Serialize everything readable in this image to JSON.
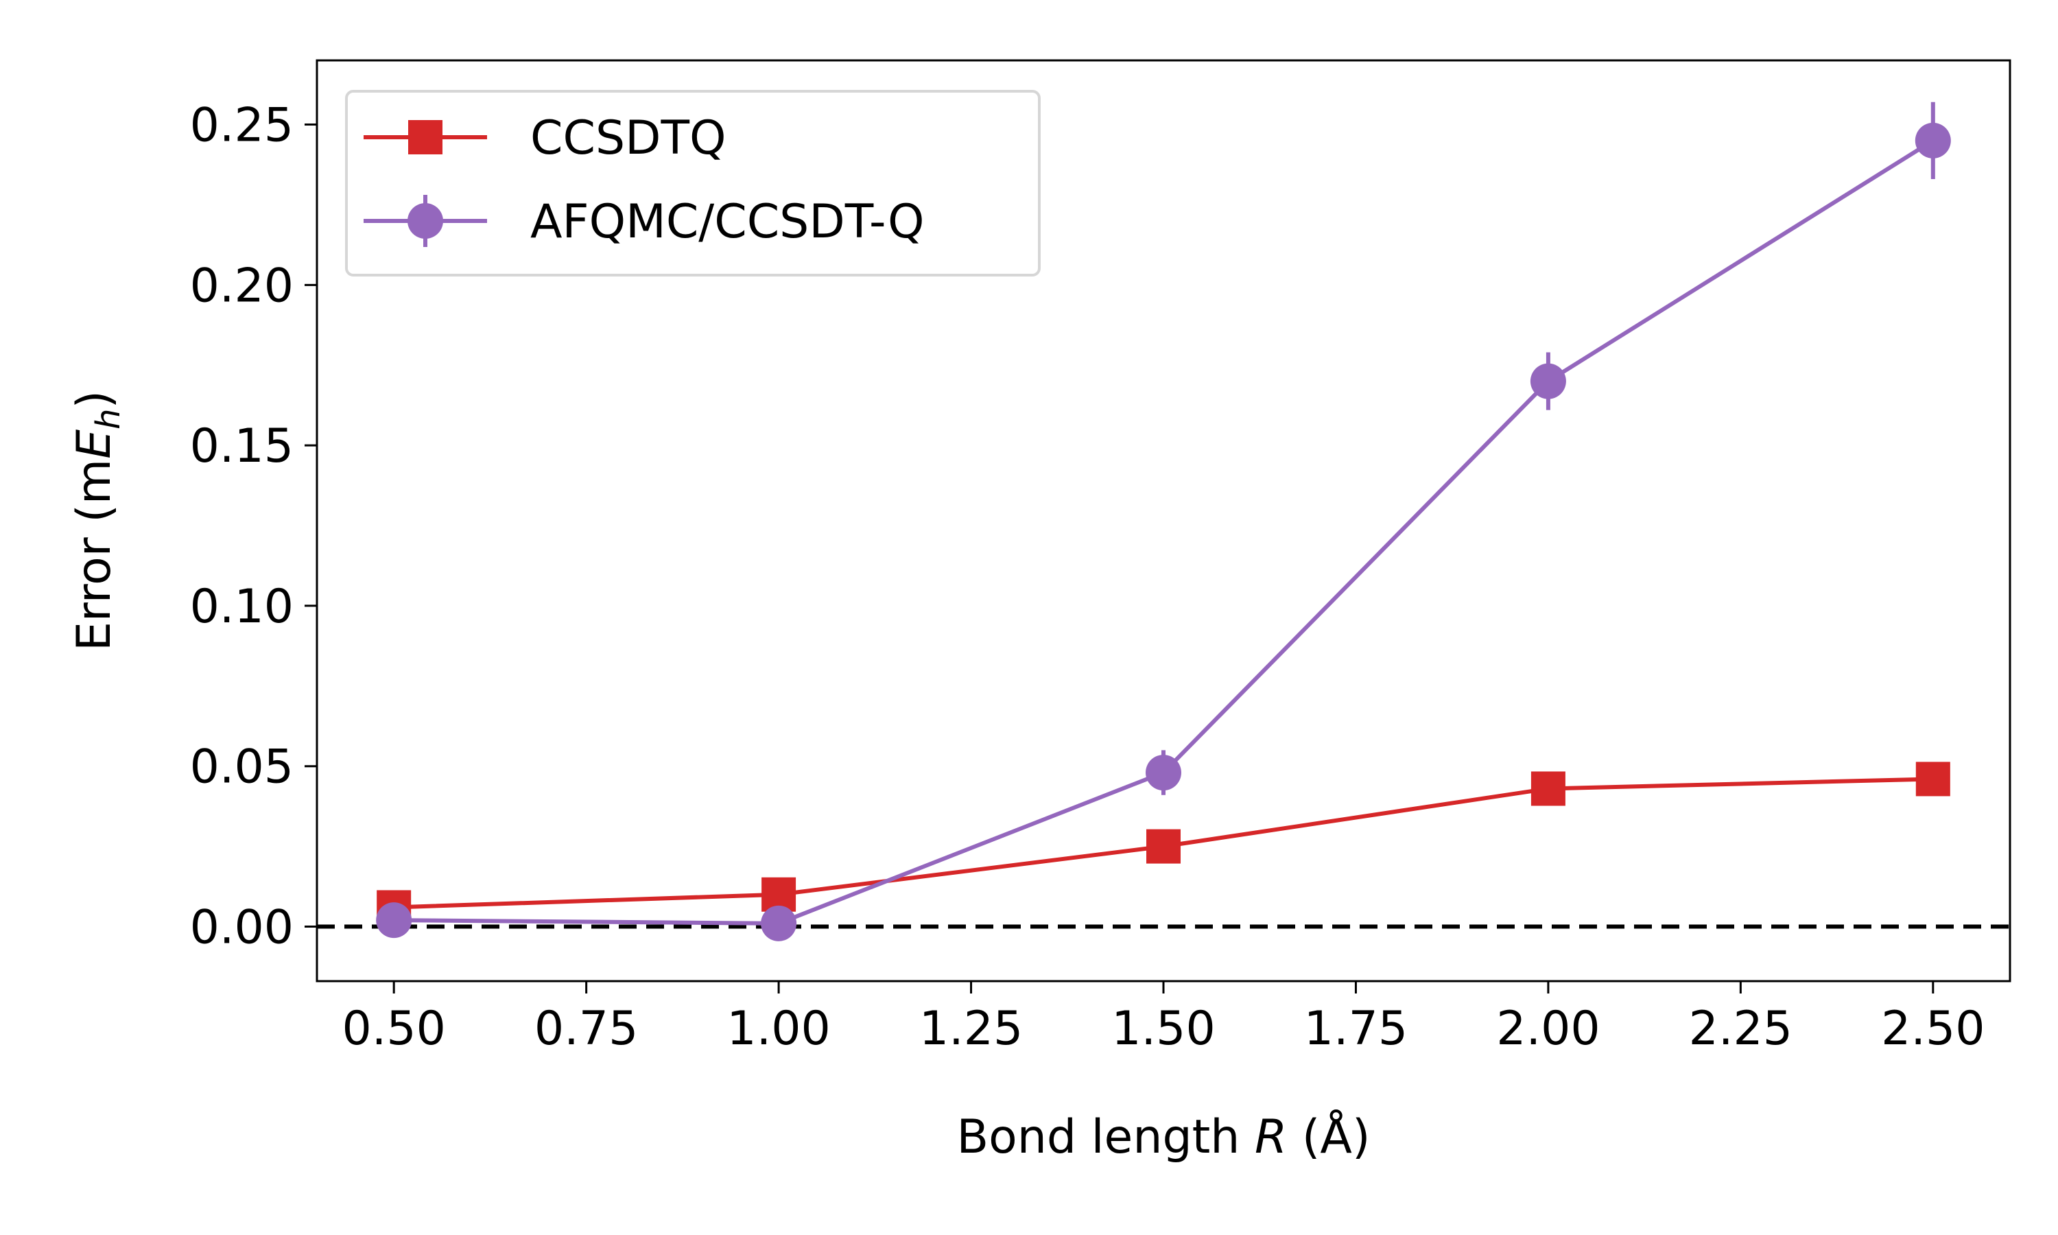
{
  "chart_data": {
    "type": "line",
    "title": "",
    "xlabel": "Bond length",
    "xlabel_symbol": "R",
    "xlabel_unit": "(Å)",
    "ylabel": "Error (m",
    "ylabel_symbol": "E",
    "ylabel_subscript": "h",
    "ylabel_close": ")",
    "xlim": [
      0.4,
      2.6
    ],
    "ylim": [
      -0.017,
      0.27
    ],
    "x_ticks": [
      "0.50",
      "0.75",
      "1.00",
      "1.25",
      "1.50",
      "1.75",
      "2.00",
      "2.25",
      "2.50"
    ],
    "y_ticks": [
      "0.00",
      "0.05",
      "0.10",
      "0.15",
      "0.20",
      "0.25"
    ],
    "reference_line": {
      "y": 0.0,
      "style": "dashed",
      "color": "#000000"
    },
    "legend_position": "upper-left",
    "series": [
      {
        "name": "CCSDTQ",
        "marker": "square",
        "color": "#d62728",
        "x": [
          0.5,
          1.0,
          1.5,
          2.0,
          2.5
        ],
        "values": [
          0.006,
          0.01,
          0.025,
          0.043,
          0.046
        ],
        "errors": [
          0,
          0,
          0,
          0,
          0
        ]
      },
      {
        "name": "AFQMC/CCSDT-Q",
        "marker": "circle",
        "color": "#9467bd",
        "x": [
          0.5,
          1.0,
          1.5,
          2.0,
          2.5
        ],
        "values": [
          0.002,
          0.001,
          0.048,
          0.17,
          0.245
        ],
        "errors": [
          0.002,
          0.002,
          0.007,
          0.009,
          0.012
        ]
      }
    ]
  }
}
